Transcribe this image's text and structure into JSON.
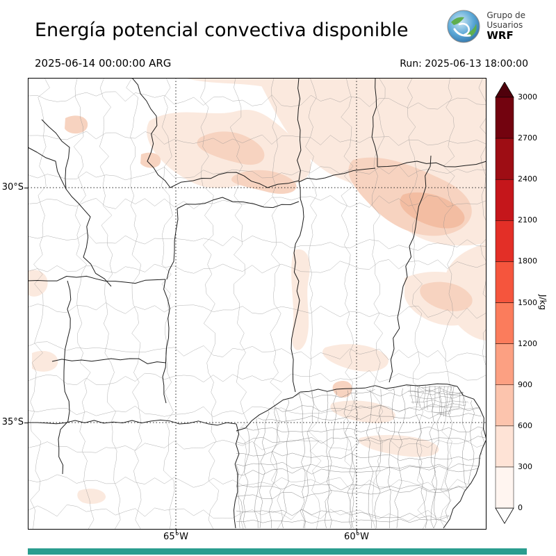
{
  "header": {
    "title": "Energía potencial convectiva disponible",
    "logo": {
      "line1": "Grupo de",
      "line2": "Usuarios",
      "line3": "WRF"
    }
  },
  "subheader": {
    "valid_time": "2025-06-14 00:00:00 ARG",
    "run": "Run: 2025-06-13 18:00:00"
  },
  "map": {
    "lat_ticks": [
      "30°S",
      "35°S"
    ],
    "lon_ticks": [
      "65°W",
      "60°W"
    ]
  },
  "colorbar": {
    "unit": "J/kg",
    "levels": [
      0,
      300,
      600,
      900,
      1200,
      1500,
      1800,
      2100,
      2400,
      2700,
      3000
    ],
    "colors": [
      "#fff5f0",
      "#fee3d6",
      "#fcc4ad",
      "#fca082",
      "#fb7c5c",
      "#f5553d",
      "#e32f27",
      "#c5161b",
      "#9e0d14",
      "#73030f"
    ],
    "over_color": "#4f000b",
    "under_color": "#ffffff"
  },
  "footer": {
    "accent_color": "#2a9d8f"
  },
  "chart_data": {
    "type": "heatmap",
    "title": "Energía potencial convectiva disponible",
    "variable": "CAPE (convective available potential energy)",
    "units": "J/kg",
    "valid_time": "2025-06-14 00:00:00 ARG",
    "run_time": "Run: 2025-06-13 18:00:00",
    "colorbar_levels": [
      0,
      300,
      600,
      900,
      1200,
      1500,
      1800,
      2100,
      2400,
      2700,
      3000
    ],
    "colorbar_colors_bottom_to_top": [
      "#fff5f0",
      "#fee3d6",
      "#fcc4ad",
      "#fca082",
      "#fb7c5c",
      "#f5553d",
      "#e32f27",
      "#c5161b",
      "#9e0d14",
      "#73030f"
    ],
    "over_color": "#4f000b",
    "under_color": "#ffffff",
    "lat_gridlines": [
      "30°S",
      "35°S"
    ],
    "lon_gridlines": [
      "65°W",
      "60°W"
    ],
    "shade_colors": [
      "#fbe9de",
      "#f7d3c0",
      "#f3bda2"
    ],
    "shaded_regions": [
      {
        "location": "north of 30°S across most of the domain, strongest northeast near 58-60°W",
        "value_range_jkg": "150-900"
      },
      {
        "location": "band 30-32°S near 59-60°W east of the Parana",
        "value_range_jkg": "300-600"
      },
      {
        "location": "scattered small patches 32-35°S between 60-63°W",
        "value_range_jkg": "150-300"
      },
      {
        "location": "west and south of domain (Cuyo, La Pampa, Buenos Aires)",
        "value_range_jkg": "0-150"
      }
    ],
    "legend_position": "right vertical colorbar with over/under arrows",
    "grid": "dotted lat/lon graticule"
  }
}
